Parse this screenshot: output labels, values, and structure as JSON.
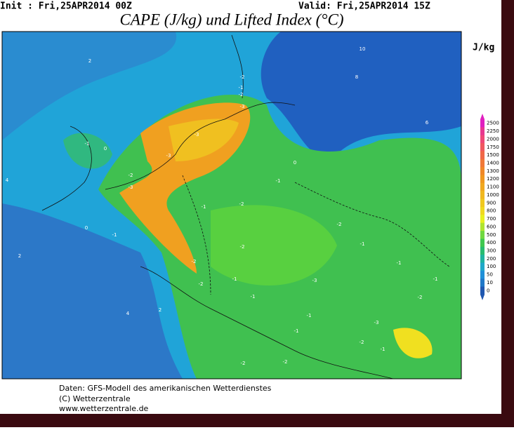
{
  "header": {
    "init": "Init : Fri,25APR2014 00Z",
    "valid": "Valid: Fri,25APR2014 15Z",
    "title": "CAPE (J/kg) und Lifted Index (°C)",
    "unit": "J/kg"
  },
  "colorbar": [
    {
      "value": 2500,
      "color": "#e020c0"
    },
    {
      "value": 2250,
      "color": "#e83890"
    },
    {
      "value": 2000,
      "color": "#f04878"
    },
    {
      "value": 1750,
      "color": "#f05860"
    },
    {
      "value": 1500,
      "color": "#f06848"
    },
    {
      "value": 1400,
      "color": "#f07838"
    },
    {
      "value": 1300,
      "color": "#f08828"
    },
    {
      "value": 1200,
      "color": "#f09820"
    },
    {
      "value": 1100,
      "color": "#f0a820"
    },
    {
      "value": 1000,
      "color": "#f0b820"
    },
    {
      "value": 900,
      "color": "#f0c820"
    },
    {
      "value": 800,
      "color": "#f0d820"
    },
    {
      "value": 700,
      "color": "#e8f020"
    },
    {
      "value": 600,
      "color": "#b0e430"
    },
    {
      "value": 500,
      "color": "#70d840"
    },
    {
      "value": 400,
      "color": "#40c850"
    },
    {
      "value": 300,
      "color": "#28bc70"
    },
    {
      "value": 200,
      "color": "#20b4a0"
    },
    {
      "value": 100,
      "color": "#20a8c8"
    },
    {
      "value": 50,
      "color": "#2090d8"
    },
    {
      "value": 10,
      "color": "#2078c8"
    },
    {
      "value": 0,
      "color": "#2058b0"
    }
  ],
  "contour_labels": [
    "2",
    "10",
    "8",
    "6",
    "-2",
    "-1",
    "-2",
    "-3",
    "-3",
    "-3",
    "-1",
    "0",
    "-2",
    "-3",
    "0",
    "-1",
    "-1",
    "-2",
    "-1",
    "-2",
    "-2",
    "-1",
    "-2",
    "-1",
    "-3",
    "-2",
    "-1",
    "-1",
    "-1",
    "-2",
    "-1",
    "-1",
    "-3",
    "-2",
    "-1",
    "-2",
    "-2",
    "4",
    "4",
    "2",
    "0",
    "2"
  ],
  "footer": [
    "Daten: GFS-Modell des amerikanischen Wetterdienstes",
    "(C) Wetterzentrale",
    "www.wetterzentrale.de"
  ]
}
